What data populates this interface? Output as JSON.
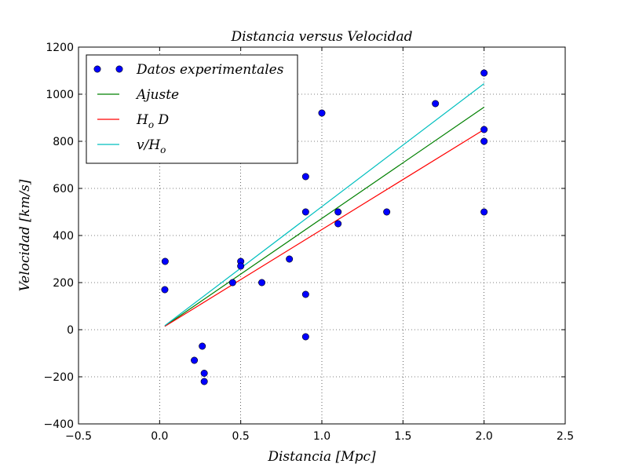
{
  "chart_data": {
    "type": "scatter",
    "title": "Distancia versus Velocidad",
    "xlabel": "Distancia [Mpc]",
    "ylabel": "Velocidad [km/s]",
    "xlim": [
      -0.5,
      2.5
    ],
    "ylim": [
      -400,
      1200
    ],
    "xticks": [
      -0.5,
      0.0,
      0.5,
      1.0,
      1.5,
      2.0,
      2.5
    ],
    "xtick_labels": [
      "−0.5",
      "0.0",
      "0.5",
      "1.0",
      "1.5",
      "2.0",
      "2.5"
    ],
    "yticks": [
      -400,
      -200,
      0,
      200,
      400,
      600,
      800,
      1000,
      1200
    ],
    "ytick_labels": [
      "−400",
      "−200",
      "0",
      "200",
      "400",
      "600",
      "800",
      "1000",
      "1200"
    ],
    "grid": true,
    "legend_position": "top-left",
    "series": [
      {
        "name": "Datos experimentales",
        "kind": "points",
        "color": "#0000ff",
        "x": [
          0.032,
          0.034,
          0.214,
          0.263,
          0.275,
          0.275,
          0.45,
          0.5,
          0.5,
          0.63,
          0.8,
          0.9,
          0.9,
          0.9,
          0.9,
          1.0,
          1.1,
          1.1,
          1.4,
          1.7,
          2.0,
          2.0,
          2.0,
          2.0
        ],
        "y": [
          170,
          290,
          -130,
          -70,
          -185,
          -220,
          200,
          290,
          270,
          200,
          300,
          650,
          150,
          500,
          -30,
          920,
          450,
          500,
          500,
          960,
          500,
          850,
          800,
          1090
        ]
      },
      {
        "name": "Ajuste",
        "kind": "line",
        "color": "#008000",
        "x": [
          0.032,
          2.0
        ],
        "y": [
          15,
          945
        ]
      },
      {
        "name": "H_o D",
        "kind": "line",
        "color": "#ff0000",
        "x": [
          0.032,
          2.0
        ],
        "y": [
          14,
          850
        ]
      },
      {
        "name": "v/H_o",
        "kind": "line",
        "color": "#00bfbf",
        "x": [
          0.032,
          2.0
        ],
        "y": [
          17,
          1045
        ]
      }
    ]
  }
}
